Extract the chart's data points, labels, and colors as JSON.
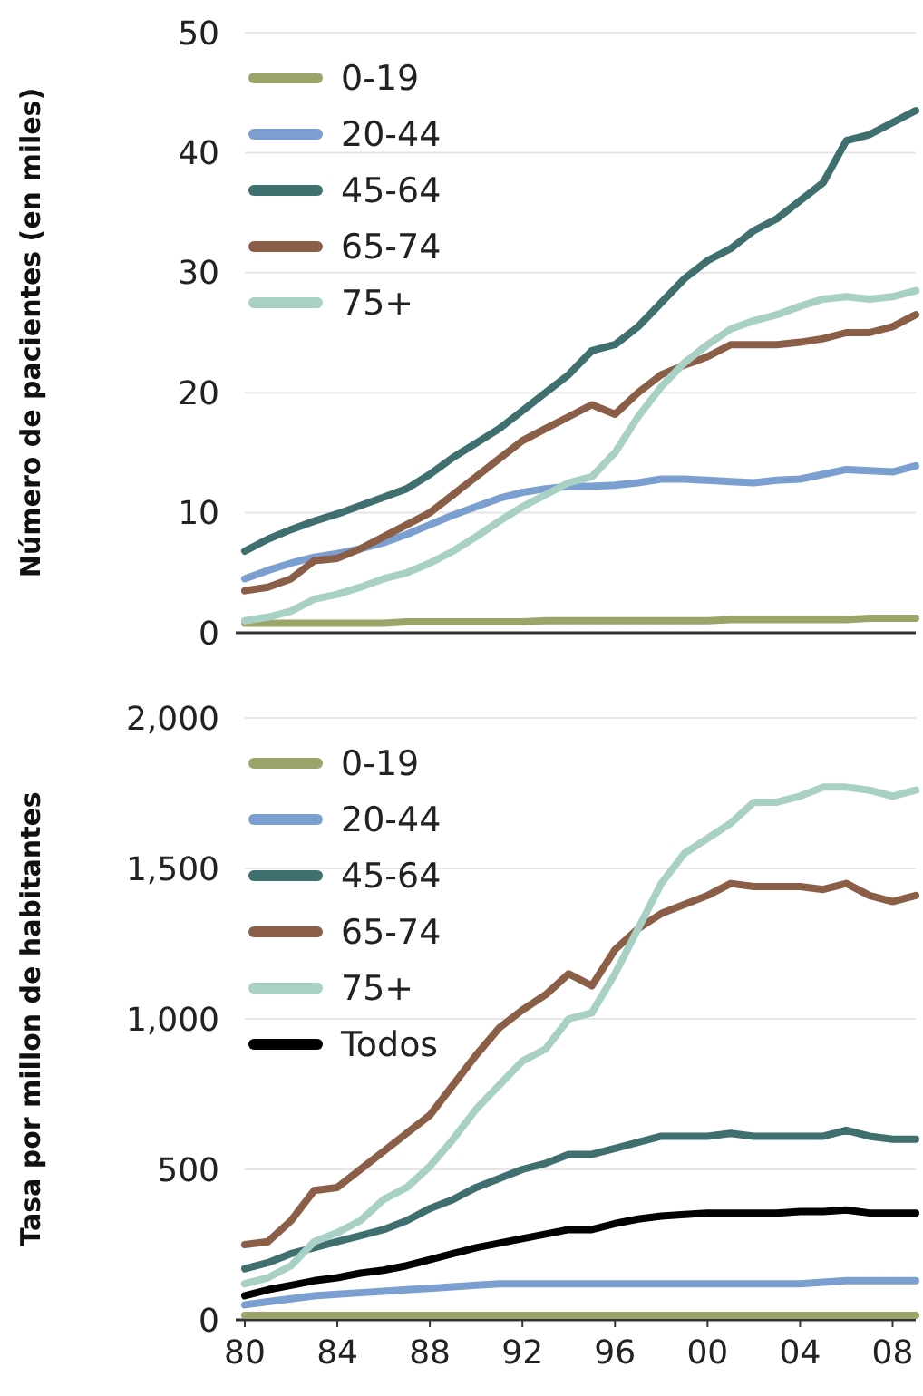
{
  "chart_data": [
    {
      "type": "line",
      "ylabel": "Número de pacientes (en miles)",
      "x": [
        1980,
        1981,
        1982,
        1983,
        1984,
        1985,
        1986,
        1987,
        1988,
        1989,
        1990,
        1991,
        1992,
        1993,
        1994,
        1995,
        1996,
        1997,
        1998,
        1999,
        2000,
        2001,
        2002,
        2003,
        2004,
        2005,
        2006,
        2007,
        2008,
        2009
      ],
      "xlim": [
        1980,
        2009
      ],
      "ylim": [
        0,
        50
      ],
      "yticks": [
        0,
        10,
        20,
        30,
        40,
        50
      ],
      "grid": "y",
      "legend": "top left",
      "tick_labels": "y",
      "line_style": "solid",
      "marker": "none",
      "series": [
        {
          "name": "0-19",
          "color": "#9aa56a",
          "values": [
            0.8,
            0.8,
            0.8,
            0.8,
            0.8,
            0.8,
            0.8,
            0.9,
            0.9,
            0.9,
            0.9,
            0.9,
            0.9,
            1.0,
            1.0,
            1.0,
            1.0,
            1.0,
            1.0,
            1.0,
            1.0,
            1.1,
            1.1,
            1.1,
            1.1,
            1.1,
            1.1,
            1.2,
            1.2,
            1.2
          ]
        },
        {
          "name": "20-44",
          "color": "#7b9fd0",
          "values": [
            4.5,
            5.2,
            5.8,
            6.3,
            6.6,
            7.0,
            7.5,
            8.2,
            9.0,
            9.8,
            10.5,
            11.2,
            11.7,
            12.0,
            12.2,
            12.2,
            12.3,
            12.5,
            12.8,
            12.8,
            12.7,
            12.6,
            12.5,
            12.7,
            12.8,
            13.2,
            13.6,
            13.5,
            13.4,
            13.9
          ]
        },
        {
          "name": "45-64",
          "color": "#3f6f6f",
          "values": [
            6.8,
            7.8,
            8.6,
            9.3,
            9.9,
            10.6,
            11.3,
            12.0,
            13.2,
            14.6,
            15.8,
            17.0,
            18.5,
            20.0,
            21.5,
            23.5,
            24.0,
            25.5,
            27.5,
            29.5,
            31.0,
            32.0,
            33.5,
            34.5,
            36.0,
            37.5,
            41.0,
            41.5,
            42.5,
            43.5
          ]
        },
        {
          "name": "65-74",
          "color": "#8b5e47",
          "values": [
            3.5,
            3.8,
            4.5,
            6.0,
            6.2,
            7.0,
            8.0,
            9.0,
            10.0,
            11.5,
            13.0,
            14.5,
            16.0,
            17.0,
            18.0,
            19.0,
            18.2,
            20.0,
            21.5,
            22.3,
            23.0,
            24.0,
            24.0,
            24.0,
            24.2,
            24.5,
            25.0,
            25.0,
            25.5,
            26.5
          ]
        },
        {
          "name": "75+",
          "color": "#a9d0c4",
          "values": [
            1.0,
            1.3,
            1.8,
            2.8,
            3.2,
            3.8,
            4.5,
            5.0,
            5.8,
            6.8,
            8.0,
            9.3,
            10.5,
            11.5,
            12.5,
            13.0,
            15.0,
            18.0,
            20.5,
            22.5,
            24.0,
            25.3,
            26.0,
            26.5,
            27.2,
            27.8,
            28.0,
            27.8,
            28.0,
            28.5
          ]
        }
      ]
    },
    {
      "type": "line",
      "ylabel": "Tasa por millon de habitantes",
      "x": [
        1980,
        1981,
        1982,
        1983,
        1984,
        1985,
        1986,
        1987,
        1988,
        1989,
        1990,
        1991,
        1992,
        1993,
        1994,
        1995,
        1996,
        1997,
        1998,
        1999,
        2000,
        2001,
        2002,
        2003,
        2004,
        2005,
        2006,
        2007,
        2008,
        2009
      ],
      "xlim": [
        1980,
        2009
      ],
      "xticks": [
        {
          "value": 1980,
          "label": "80"
        },
        {
          "value": 1984,
          "label": "84"
        },
        {
          "value": 1988,
          "label": "88"
        },
        {
          "value": 1992,
          "label": "92"
        },
        {
          "value": 1996,
          "label": "96"
        },
        {
          "value": 2000,
          "label": "00"
        },
        {
          "value": 2004,
          "label": "04"
        },
        {
          "value": 2008,
          "label": "08"
        }
      ],
      "ylim": [
        0,
        2000
      ],
      "yticks": [
        0,
        500,
        {
          "value": 1000,
          "label": "1,000"
        },
        {
          "value": 1500,
          "label": "1,500"
        },
        {
          "value": 2000,
          "label": "2,000"
        }
      ],
      "grid": "y",
      "legend": "top left",
      "line_style": "solid",
      "marker": "none",
      "series": [
        {
          "name": "0-19",
          "color": "#9aa56a",
          "values": [
            15,
            15,
            15,
            15,
            15,
            15,
            15,
            15,
            15,
            15,
            15,
            15,
            15,
            15,
            15,
            15,
            15,
            15,
            15,
            15,
            15,
            15,
            15,
            15,
            15,
            15,
            15,
            15,
            15,
            15
          ]
        },
        {
          "name": "20-44",
          "color": "#7b9fd0",
          "values": [
            50,
            60,
            70,
            80,
            85,
            90,
            95,
            100,
            105,
            110,
            115,
            120,
            120,
            120,
            120,
            120,
            120,
            120,
            120,
            120,
            120,
            120,
            120,
            120,
            120,
            125,
            130,
            130,
            130,
            130
          ]
        },
        {
          "name": "45-64",
          "color": "#3f6f6f",
          "values": [
            170,
            190,
            220,
            240,
            260,
            280,
            300,
            330,
            370,
            400,
            440,
            470,
            500,
            520,
            550,
            550,
            570,
            590,
            610,
            610,
            610,
            620,
            610,
            610,
            610,
            610,
            630,
            610,
            600,
            600
          ]
        },
        {
          "name": "65-74",
          "color": "#8b5e47",
          "values": [
            250,
            260,
            330,
            430,
            440,
            500,
            560,
            620,
            680,
            780,
            880,
            970,
            1030,
            1080,
            1150,
            1110,
            1230,
            1300,
            1350,
            1380,
            1410,
            1450,
            1440,
            1440,
            1440,
            1430,
            1450,
            1410,
            1390,
            1410
          ]
        },
        {
          "name": "75+",
          "color": "#a9d0c4",
          "values": [
            120,
            140,
            180,
            260,
            290,
            330,
            400,
            440,
            510,
            600,
            700,
            780,
            860,
            900,
            1000,
            1020,
            1150,
            1300,
            1450,
            1550,
            1600,
            1650,
            1720,
            1720,
            1740,
            1770,
            1770,
            1760,
            1740,
            1760
          ]
        },
        {
          "name": "Todos",
          "color": "#000000",
          "values": [
            80,
            100,
            115,
            130,
            140,
            155,
            165,
            180,
            200,
            220,
            240,
            255,
            270,
            285,
            300,
            300,
            320,
            335,
            345,
            350,
            355,
            355,
            355,
            355,
            360,
            360,
            365,
            355,
            355,
            355
          ]
        }
      ]
    }
  ]
}
